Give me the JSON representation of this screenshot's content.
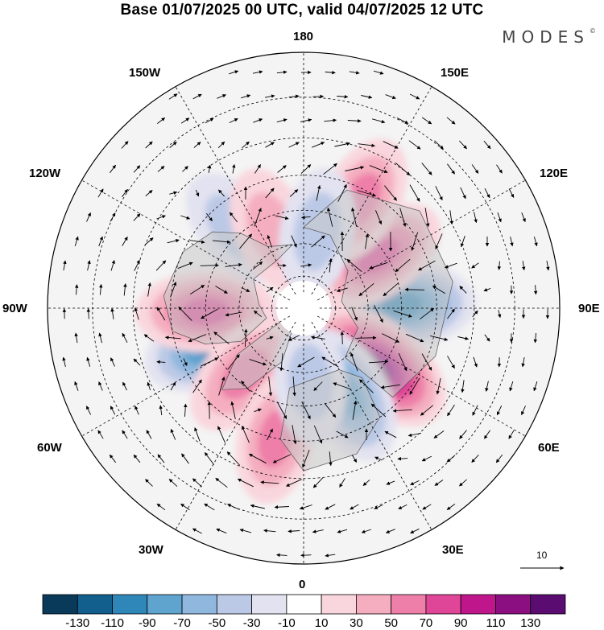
{
  "header": {
    "title": "Base 01/07/2025 00 UTC, valid 04/07/2025 12 UTC",
    "brand": "MODES",
    "brand_mark": "©"
  },
  "map": {
    "projection": "north-polar-stereographic",
    "longitude_labels": {
      "top": "180",
      "bottom": "0",
      "left": "90W",
      "right": "90E",
      "upper_left_1": "150W",
      "upper_left_2": "120W",
      "upper_right_1": "150E",
      "upper_right_2": "120E",
      "lower_left_1": "60W",
      "lower_left_2": "30W",
      "lower_right_1": "60E",
      "lower_right_2": "30E"
    },
    "reference_vector_label": "10",
    "colors": {
      "land": "#c8c8c8",
      "coast": "#555555",
      "grid": "#000000"
    },
    "anomalies": [
      {
        "value": -90,
        "lon": 92,
        "colat": 30
      },
      {
        "value": 110,
        "lon": 52,
        "colat": 29
      },
      {
        "value": -70,
        "lon": 27,
        "colat": 30
      },
      {
        "value": 70,
        "lon": 125,
        "colat": 28
      },
      {
        "value": 50,
        "lon": 152,
        "colat": 37
      },
      {
        "value": -90,
        "lon": -68,
        "colat": 29
      },
      {
        "value": 70,
        "lon": -88,
        "colat": 30
      },
      {
        "value": 60,
        "lon": -42,
        "colat": 27
      },
      {
        "value": 50,
        "lon": -12,
        "colat": 40
      },
      {
        "value": -40,
        "lon": -140,
        "colat": 32
      },
      {
        "value": 40,
        "lon": -158,
        "colat": 26
      },
      {
        "value": -40,
        "lon": 170,
        "colat": 24
      },
      {
        "value": -30,
        "lon": 5,
        "colat": 23
      }
    ]
  },
  "colorbar": {
    "labels": [
      "-130",
      "-110",
      "-90",
      "-70",
      "-50",
      "-30",
      "-10",
      "10",
      "30",
      "50",
      "70",
      "90",
      "110",
      "130"
    ],
    "colors": [
      "#0a3a5a",
      "#125e8c",
      "#2f86b8",
      "#5fa3cf",
      "#90b8de",
      "#bcc9e6",
      "#e2e2f0",
      "#ffffff",
      "#f9d6dd",
      "#f4aebf",
      "#ee7fa8",
      "#e04697",
      "#c0168c",
      "#8b0f80",
      "#5a0c70"
    ]
  }
}
